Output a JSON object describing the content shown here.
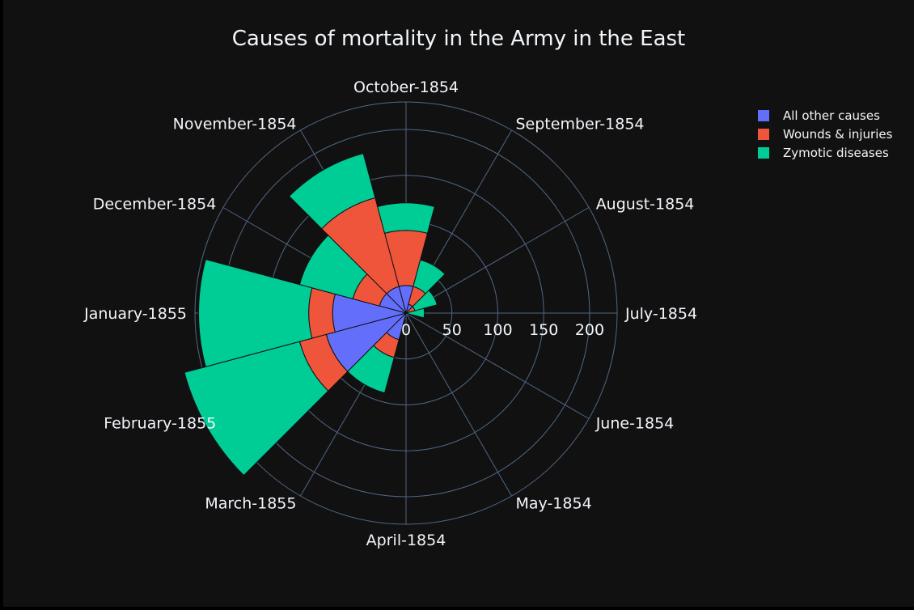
{
  "chart_data": {
    "type": "barpolar",
    "title": "Causes of mortality in the Army in the East",
    "angular_categories": [
      "July-1854",
      "August-1854",
      "September-1854",
      "October-1854",
      "November-1854",
      "December-1854",
      "January-1855",
      "February-1855",
      "March-1855",
      "April-1854",
      "May-1854",
      "June-1854"
    ],
    "angular_direction": "counterclockwise",
    "radial_range": [
      0,
      230
    ],
    "radial_ticks": [
      "0",
      "50",
      "100",
      "150",
      "200"
    ],
    "radial_tick_values": [
      0,
      50,
      100,
      150,
      200
    ],
    "legend_position": "top-right",
    "series": [
      {
        "name": "All other causes",
        "color": "#636efa",
        "values": [
          0,
          0,
          10,
          30,
          30,
          30,
          80,
          90,
          30,
          0,
          0,
          0
        ]
      },
      {
        "name": "Wounds & injuries",
        "color": "#ef553b",
        "values": [
          0,
          10,
          20,
          60,
          100,
          30,
          26,
          30,
          20,
          0,
          0,
          0
        ]
      },
      {
        "name": "Zymotic diseases",
        "color": "#00cc96",
        "values": [
          20,
          25,
          30,
          30,
          50,
          60,
          120,
          130,
          40,
          0,
          0,
          0
        ]
      }
    ]
  }
}
